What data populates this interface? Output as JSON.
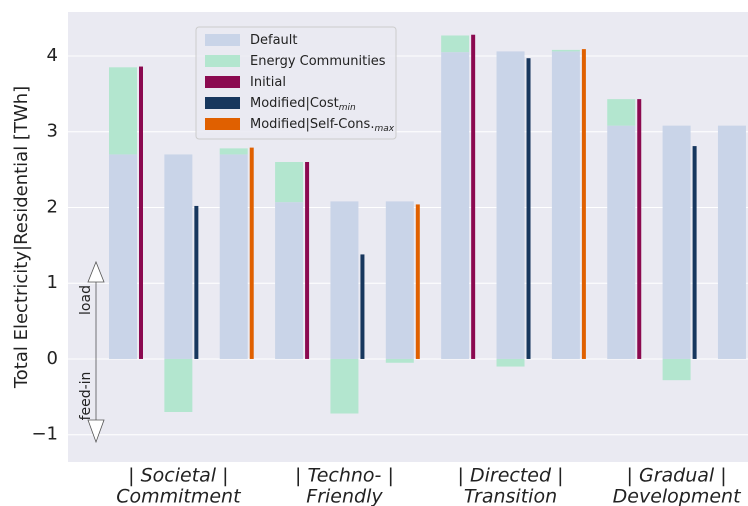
{
  "chart_data": {
    "type": "bar",
    "y_label": "Total Electricity|Residential [TWh]",
    "ylim": [
      -1.36,
      4.58
    ],
    "yticks": [
      {
        "value": -1,
        "label": "−1"
      },
      0,
      1,
      2,
      3,
      4
    ],
    "grid": true,
    "groups": [
      [
        "|  Societal  |",
        "Commitment"
      ],
      [
        "|  Techno-  |",
        "Friendly"
      ],
      [
        "|  Directed  |",
        "Transition"
      ],
      [
        "|  Gradual  |",
        "Development"
      ]
    ],
    "annotations": [
      "load",
      "feed-in"
    ],
    "series": [
      {
        "name": "Default",
        "color": "#c9d4e8",
        "values": [
          2.7,
          2.7,
          2.7,
          2.07,
          2.08,
          2.08,
          4.05,
          4.06,
          4.06,
          3.08,
          3.08,
          3.08
        ]
      },
      {
        "name": "Energy Communities",
        "color": "#b3e6cf",
        "values": [
          1.15,
          -0.7,
          0.08,
          0.53,
          -0.72,
          -0.05,
          0.22,
          -0.1,
          0.02,
          0.35,
          -0.28,
          null
        ]
      },
      {
        "name": "Initial",
        "color": "#8b0a50",
        "values": [
          3.86,
          null,
          null,
          2.6,
          null,
          null,
          4.28,
          null,
          null,
          3.43,
          null,
          null
        ]
      },
      {
        "name": "Modified|Cost",
        "name_subscript": "min",
        "color": "#17375e",
        "values": [
          null,
          2.02,
          null,
          null,
          1.38,
          null,
          null,
          3.97,
          null,
          null,
          2.81,
          null
        ]
      },
      {
        "name": "Modified|Self-Cons.",
        "name_subscript": "max",
        "color": "#e06000",
        "values": [
          null,
          null,
          2.79,
          null,
          null,
          2.04,
          null,
          null,
          4.09,
          null,
          null,
          null
        ]
      }
    ]
  }
}
